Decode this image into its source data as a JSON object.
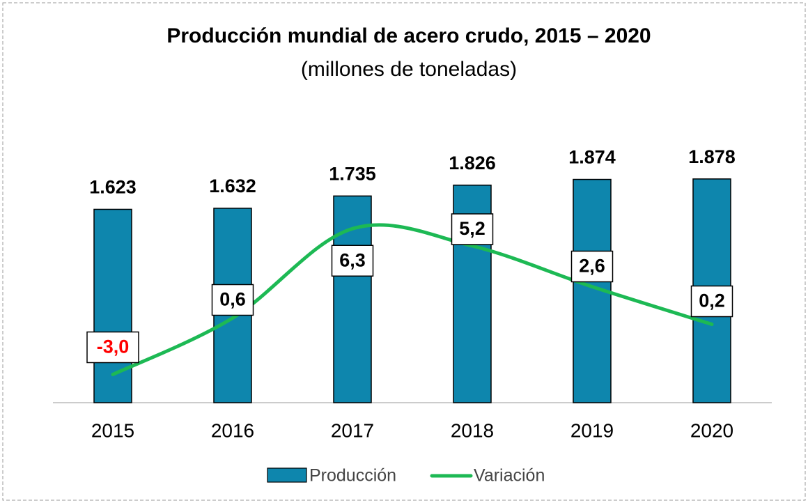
{
  "chart_data": {
    "type": "bar+line",
    "title": "Producción mundial de acero crudo, 2015 – 2020",
    "subtitle": "(millones de toneladas)",
    "categories": [
      "2015",
      "2016",
      "2017",
      "2018",
      "2019",
      "2020"
    ],
    "ylim": [
      0,
      2000
    ],
    "y2lim": [
      -4.8,
      10.4
    ],
    "negative_label_color": "#ff0000",
    "series": [
      {
        "name": "Producción",
        "type": "bar",
        "color": "#0e86ad",
        "values": [
          1623,
          1632,
          1735,
          1826,
          1874,
          1878
        ],
        "value_labels": [
          "1.623",
          "1.632",
          "1.735",
          "1.826",
          "1.874",
          "1.878"
        ]
      },
      {
        "name": "Variación",
        "type": "line",
        "axis": "y2",
        "color": "#1db954",
        "smooth": true,
        "values": [
          -3.0,
          0.6,
          6.3,
          5.2,
          2.6,
          0.2
        ],
        "value_labels": [
          "-3,0",
          "0,6",
          "6,3",
          "5,2",
          "2,6",
          "0,2"
        ]
      }
    ]
  }
}
